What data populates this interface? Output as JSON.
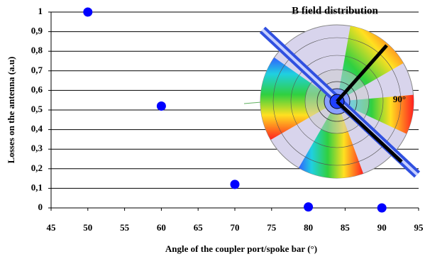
{
  "chart_data": {
    "type": "scatter",
    "x_label": "Angle of the coupler port/spoke bar (°)",
    "y_label": "Losses on the antenna (a.u)",
    "inset_title": "B field distribution",
    "inset_angle_label": "90°",
    "x": [
      50,
      60,
      70,
      80,
      90
    ],
    "values": [
      1,
      0.52,
      0.12,
      0.005,
      0
    ],
    "color": "#0000ff",
    "xlim": [
      45,
      95
    ],
    "xticks": [
      45,
      50,
      55,
      60,
      65,
      70,
      75,
      80,
      85,
      90,
      95
    ],
    "ylim": [
      0,
      1
    ],
    "yticks": [
      0,
      {
        "value": 0.1,
        "label": "0,1"
      },
      {
        "value": 0.2,
        "label": "0,2"
      },
      {
        "value": 0.3,
        "label": "0,3"
      },
      {
        "value": 0.4,
        "label": "0,4"
      },
      {
        "value": 0.5,
        "label": "0,5"
      },
      {
        "value": 0.6,
        "label": "0,6"
      },
      {
        "value": 0.7,
        "label": "0,7"
      },
      {
        "value": 0.8,
        "label": "0,8"
      },
      {
        "value": 0.9,
        "label": "0,9"
      },
      1
    ],
    "grid": true
  }
}
